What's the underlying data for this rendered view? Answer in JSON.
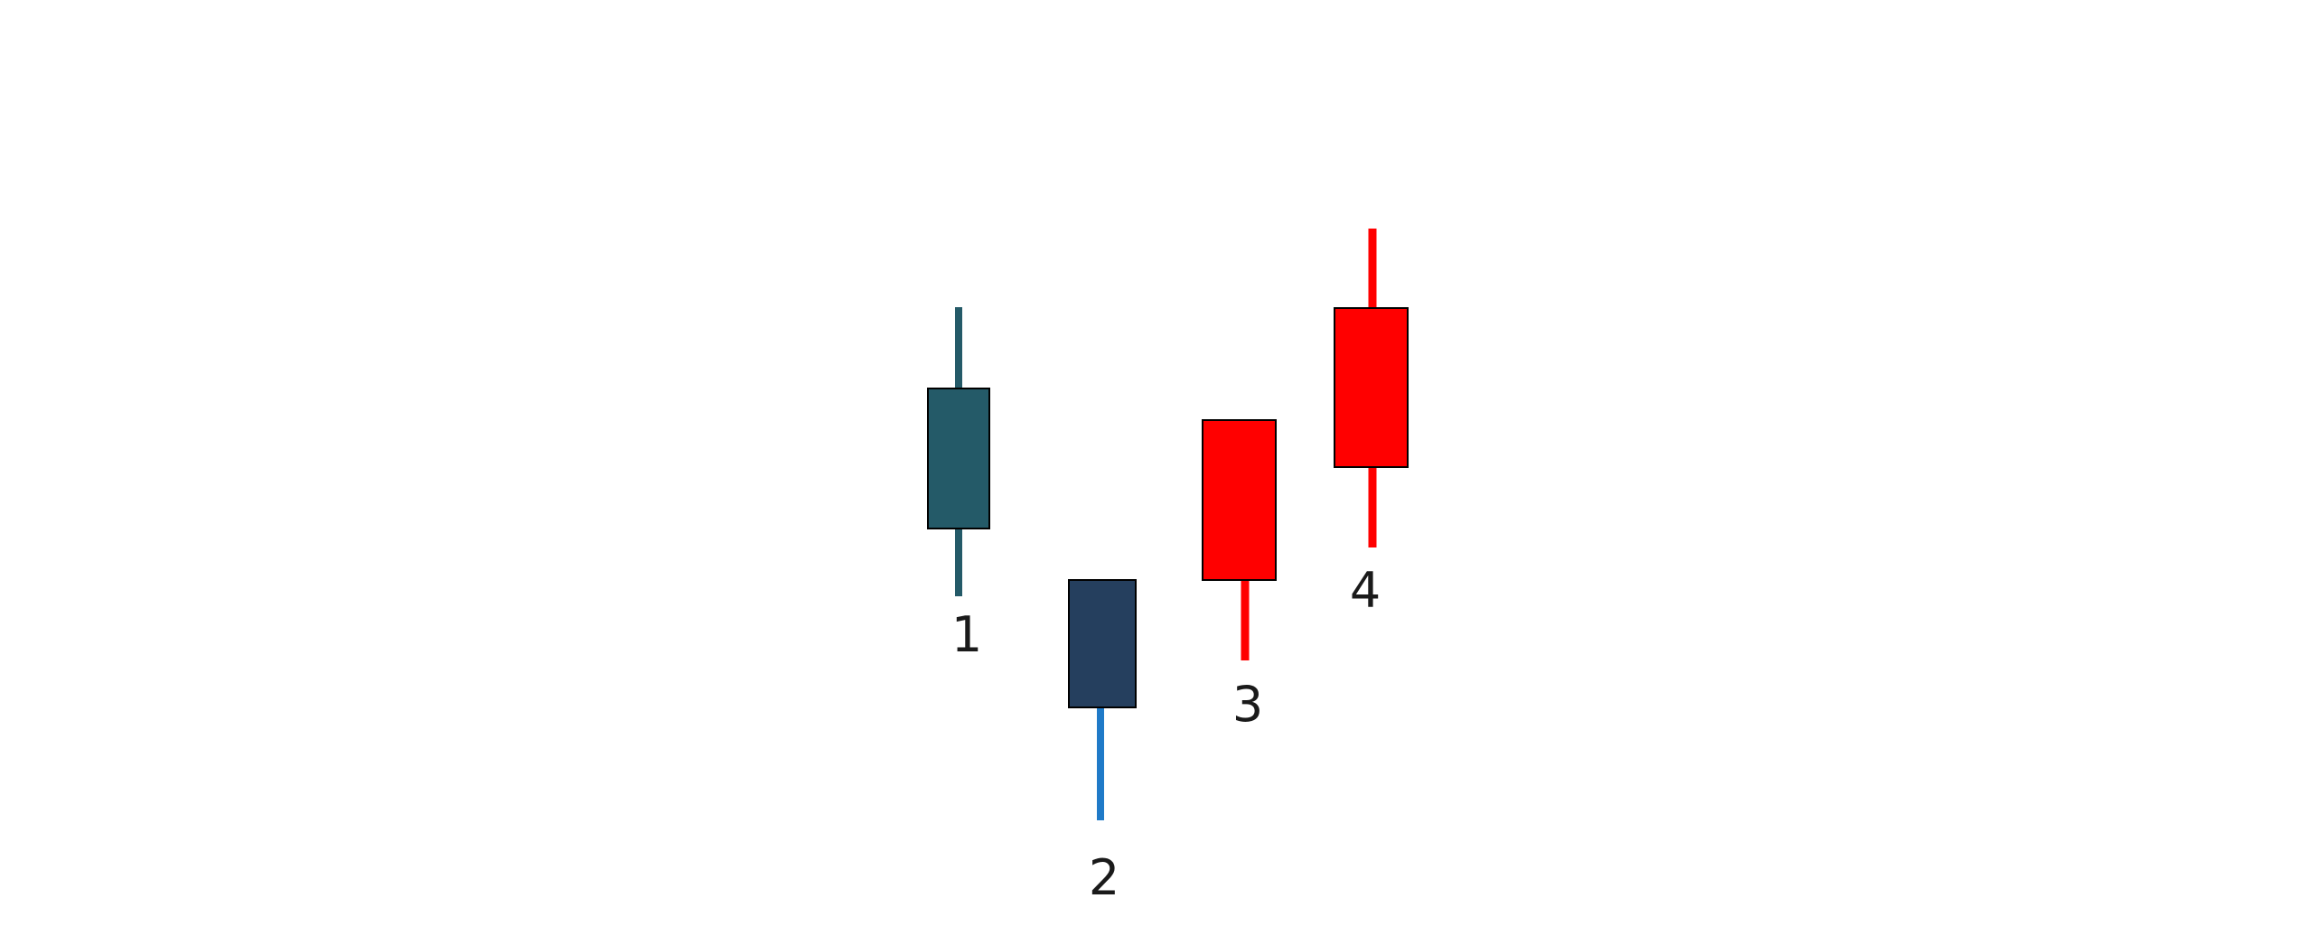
{
  "candles": [
    {
      "label": "1",
      "body_color": "#245a68",
      "wick_top_color": "#245a68",
      "wick_bottom_color": "#245a68"
    },
    {
      "label": "2",
      "body_color": "#253f5e",
      "wick_top_color": "#253f5e",
      "wick_bottom_color": "#1f7ac8"
    },
    {
      "label": "3",
      "body_color": "#ff0000",
      "wick_top_color": "#ff0000",
      "wick_bottom_color": "#ff0000"
    },
    {
      "label": "4",
      "body_color": "#ff0000",
      "wick_top_color": "#ff0000",
      "wick_bottom_color": "#ff0000"
    }
  ]
}
